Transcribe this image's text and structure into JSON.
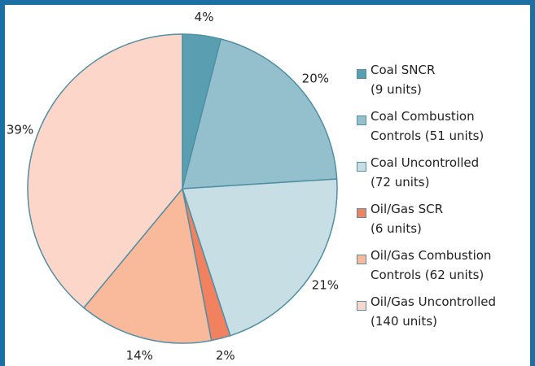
{
  "chart_data": {
    "type": "pie",
    "categories": [
      "Coal SNCR\n(9 units)",
      "Coal Combustion\nControls (51 units)",
      "Coal Uncontrolled\n(72 units)",
      "Oil/Gas SCR\n(6 units)",
      "Oil/Gas Combustion\nControls (62 units)",
      "Oil/Gas Uncontrolled\n(140 units)"
    ],
    "values": [
      4,
      20,
      21,
      2,
      14,
      39
    ],
    "value_labels": [
      "4%",
      "20%",
      "21%",
      "2%",
      "14%",
      "39%"
    ],
    "colors": [
      "#5a9fb1",
      "#94bfcc",
      "#c7dee5",
      "#f2825f",
      "#f9b99b",
      "#fcd7c9"
    ],
    "legend": "right"
  }
}
